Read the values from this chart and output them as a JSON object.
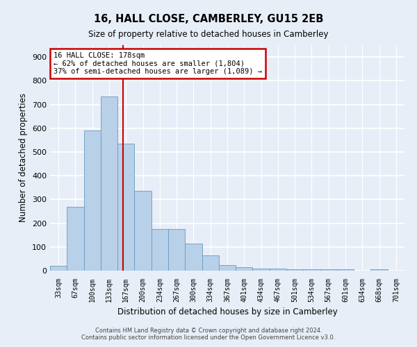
{
  "title": "16, HALL CLOSE, CAMBERLEY, GU15 2EB",
  "subtitle": "Size of property relative to detached houses in Camberley",
  "xlabel": "Distribution of detached houses by size in Camberley",
  "ylabel": "Number of detached properties",
  "bar_values": [
    20,
    270,
    590,
    735,
    535,
    335,
    175,
    175,
    115,
    65,
    22,
    15,
    8,
    8,
    5,
    5,
    5,
    5,
    0,
    5,
    0
  ],
  "categories": [
    "33sqm",
    "67sqm",
    "100sqm",
    "133sqm",
    "167sqm",
    "200sqm",
    "234sqm",
    "267sqm",
    "300sqm",
    "334sqm",
    "367sqm",
    "401sqm",
    "434sqm",
    "467sqm",
    "501sqm",
    "534sqm",
    "567sqm",
    "601sqm",
    "634sqm",
    "668sqm",
    "701sqm"
  ],
  "bar_color": "#b8d0e8",
  "bar_edge_color": "#6899c0",
  "annotation_title": "16 HALL CLOSE: 178sqm",
  "annotation_line1": "← 62% of detached houses are smaller (1,804)",
  "annotation_line2": "37% of semi-detached houses are larger (1,089) →",
  "annotation_box_facecolor": "#ffffff",
  "annotation_box_edgecolor": "#cc0000",
  "vline_color": "#cc0000",
  "fig_facecolor": "#e8eef8",
  "ax_facecolor": "#e8eef8",
  "grid_color": "#ffffff",
  "ylim": [
    0,
    950
  ],
  "yticks": [
    0,
    100,
    200,
    300,
    400,
    500,
    600,
    700,
    800,
    900
  ],
  "vline_x_index": 4.33,
  "footer_line1": "Contains HM Land Registry data © Crown copyright and database right 2024.",
  "footer_line2": "Contains public sector information licensed under the Open Government Licence v3.0."
}
